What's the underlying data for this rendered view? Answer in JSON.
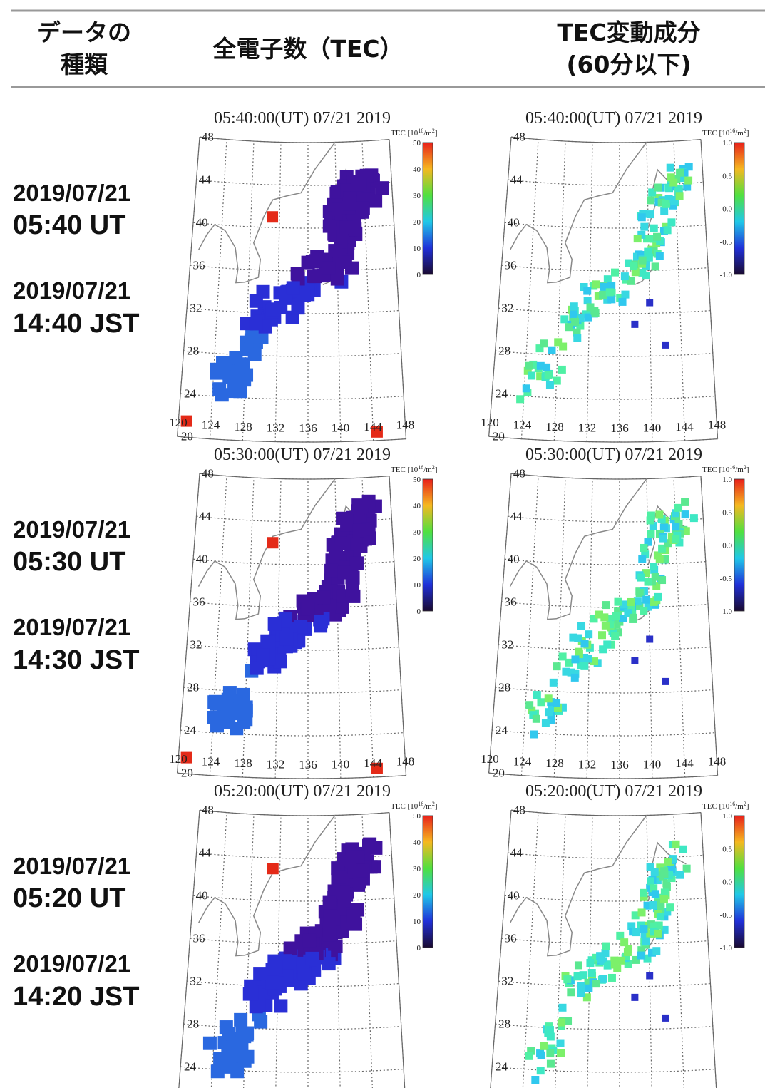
{
  "header": {
    "type_label": [
      "データの",
      "種類"
    ],
    "tec": "全電子数（TEC）",
    "variation": [
      "TEC変動成分",
      "(60分以下)"
    ]
  },
  "rows": [
    {
      "ut_date": "2019/07/21",
      "ut_time": "05:40 UT",
      "jst_date": "2019/07/21",
      "jst_time": "14:40 JST",
      "map_title": "05:40:00(UT) 07/21 2019"
    },
    {
      "ut_date": "2019/07/21",
      "ut_time": "05:30 UT",
      "jst_date": "2019/07/21",
      "jst_time": "14:30 JST",
      "map_title": "05:30:00(UT) 07/21 2019"
    },
    {
      "ut_date": "2019/07/21",
      "ut_time": "05:20 UT",
      "jst_date": "2019/07/21",
      "jst_time": "14:20 JST",
      "map_title": "05:20:00(UT) 07/21 2019"
    }
  ],
  "map": {
    "lats": [
      "48",
      "44",
      "40",
      "36",
      "32",
      "28",
      "24",
      "20"
    ],
    "lons": [
      "120",
      "124",
      "128",
      "132",
      "136",
      "140",
      "144",
      "148"
    ],
    "colorbar_title": {
      "prefix": "TEC [10",
      "exp": "16",
      "unit": "/m",
      "unit_exp": "2",
      "suffix": "]"
    },
    "tec_ticks": [
      "50",
      "40",
      "30",
      "20",
      "10",
      "0"
    ],
    "variation_ticks": [
      "1.0",
      "0.5",
      "0.0",
      "-0.5",
      "-1.0"
    ]
  }
}
